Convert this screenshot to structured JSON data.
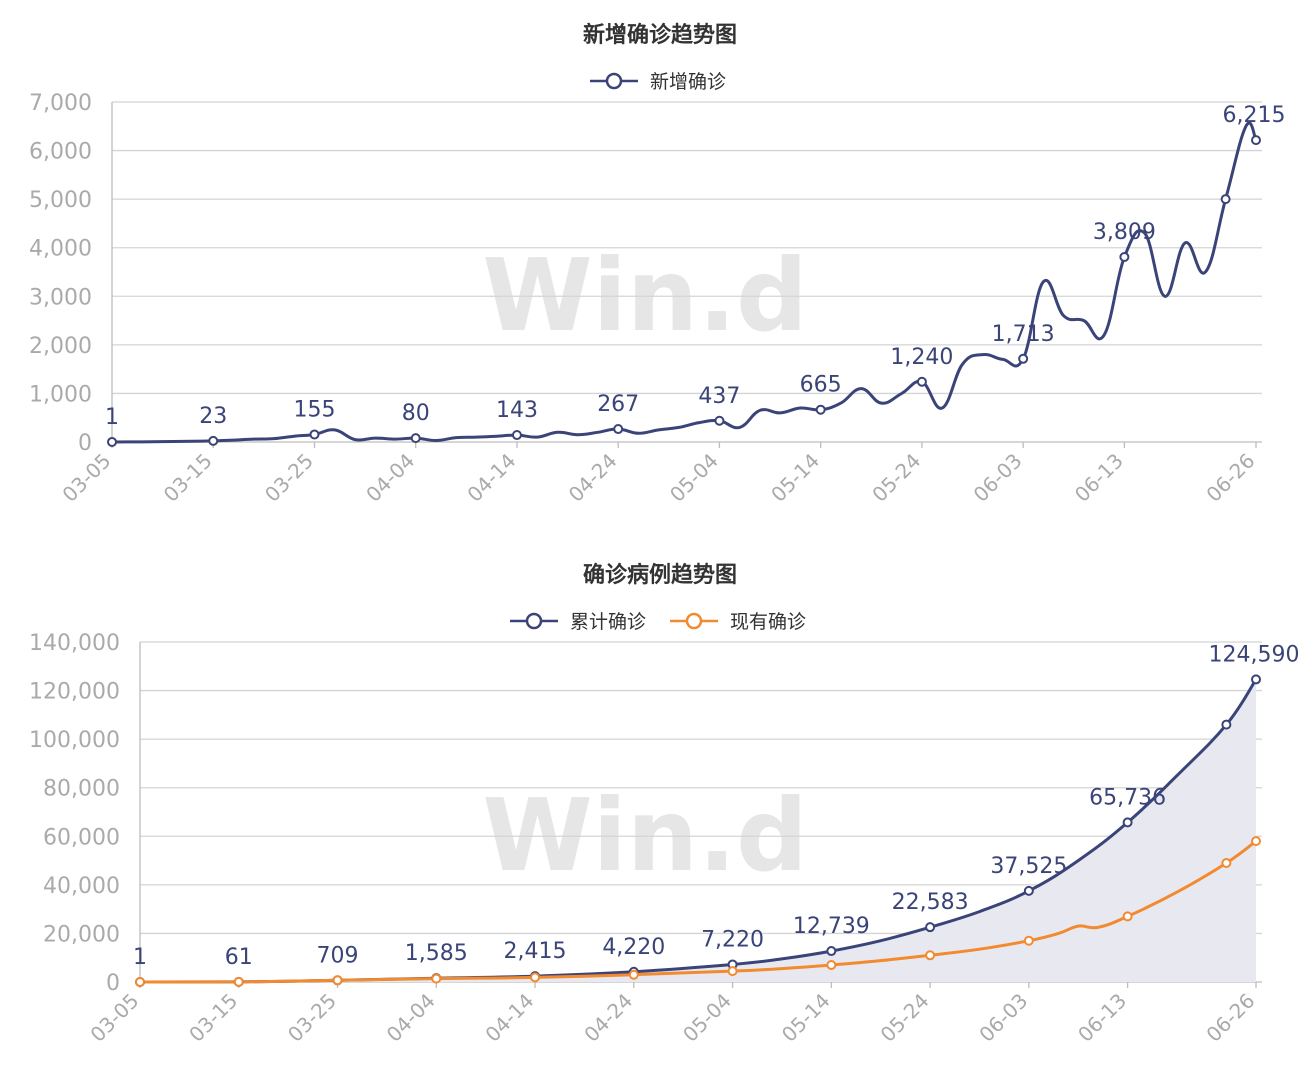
{
  "watermark": "Win.d",
  "colors": {
    "navy": "#3a4478",
    "orange": "#f28a30",
    "axis_text": "#aaaaaa",
    "grid": "#d4d4d4",
    "area": "#e8e9f0",
    "title": "#333333"
  },
  "chart_data": [
    {
      "type": "line",
      "title": "新增确诊趋势图",
      "legend": "top-center",
      "grid": true,
      "ylim": [
        0,
        7000
      ],
      "yticks": [
        0,
        1000,
        2000,
        3000,
        4000,
        5000,
        6000,
        7000
      ],
      "ytick_labels": [
        "0",
        "1,000",
        "2,000",
        "3,000",
        "4,000",
        "5,000",
        "6,000",
        "7,000"
      ],
      "xticks": [
        "03-05",
        "03-15",
        "03-25",
        "04-04",
        "04-14",
        "04-24",
        "05-04",
        "05-14",
        "05-24",
        "06-03",
        "06-13",
        "06-26"
      ],
      "series": [
        {
          "name": "新增确诊",
          "color": "#3a4478",
          "x": [
            "03-05",
            "03-07",
            "03-09",
            "03-11",
            "03-13",
            "03-15",
            "03-17",
            "03-19",
            "03-21",
            "03-23",
            "03-25",
            "03-27",
            "03-29",
            "03-31",
            "04-02",
            "04-04",
            "04-06",
            "04-08",
            "04-10",
            "04-12",
            "04-14",
            "04-16",
            "04-18",
            "04-20",
            "04-22",
            "04-24",
            "04-26",
            "04-28",
            "04-30",
            "05-02",
            "05-04",
            "05-06",
            "05-08",
            "05-10",
            "05-12",
            "05-14",
            "05-16",
            "05-18",
            "05-20",
            "05-22",
            "05-24",
            "05-26",
            "05-28",
            "05-30",
            "06-01",
            "06-03",
            "06-05",
            "06-07",
            "06-09",
            "06-11",
            "06-13",
            "06-15",
            "06-17",
            "06-19",
            "06-21",
            "06-23",
            "06-25",
            "06-26"
          ],
          "values": [
            1,
            2,
            5,
            10,
            15,
            23,
            40,
            60,
            70,
            120,
            155,
            250,
            50,
            80,
            60,
            80,
            30,
            90,
            100,
            120,
            143,
            100,
            200,
            150,
            200,
            267,
            180,
            250,
            300,
            400,
            437,
            300,
            650,
            600,
            700,
            665,
            800,
            1100,
            800,
            1000,
            1240,
            700,
            1600,
            1800,
            1700,
            1713,
            3300,
            2600,
            2500,
            2200,
            3809,
            4300,
            3000,
            4100,
            3500,
            5000,
            6500,
            6215
          ],
          "labels": [
            {
              "x": "03-05",
              "text": "1"
            },
            {
              "x": "03-15",
              "text": "23"
            },
            {
              "x": "03-25",
              "text": "155"
            },
            {
              "x": "04-04",
              "text": "80"
            },
            {
              "x": "04-14",
              "text": "143"
            },
            {
              "x": "04-24",
              "text": "267"
            },
            {
              "x": "05-04",
              "text": "437"
            },
            {
              "x": "05-14",
              "text": "665"
            },
            {
              "x": "05-24",
              "text": "1,240"
            },
            {
              "x": "06-03",
              "text": "1,713"
            },
            {
              "x": "06-13",
              "text": "3,809"
            },
            {
              "x": "06-26",
              "text": "6,215"
            }
          ]
        }
      ]
    },
    {
      "type": "line",
      "title": "确诊病例趋势图",
      "legend": "top-center",
      "grid": true,
      "ylim": [
        0,
        140000
      ],
      "yticks": [
        0,
        20000,
        40000,
        60000,
        80000,
        100000,
        120000,
        140000
      ],
      "ytick_labels": [
        "0",
        "20,000",
        "40,000",
        "60,000",
        "80,000",
        "100,000",
        "120,000",
        "140,000"
      ],
      "xticks": [
        "03-05",
        "03-15",
        "03-25",
        "04-04",
        "04-14",
        "04-24",
        "05-04",
        "05-14",
        "05-24",
        "06-03",
        "06-13",
        "06-26"
      ],
      "series": [
        {
          "name": "累计确诊",
          "color": "#3a4478",
          "area": true,
          "x": [
            "03-05",
            "03-15",
            "03-25",
            "04-04",
            "04-14",
            "04-24",
            "05-04",
            "05-09",
            "05-14",
            "05-19",
            "05-24",
            "05-29",
            "06-03",
            "06-08",
            "06-13",
            "06-18",
            "06-23",
            "06-26"
          ],
          "values": [
            1,
            61,
            709,
            1585,
            2415,
            4220,
            7220,
            9500,
            12739,
            17000,
            22583,
            29000,
            37525,
            50000,
            65736,
            85000,
            106000,
            124590
          ],
          "labels": [
            {
              "x": "03-05",
              "text": "1"
            },
            {
              "x": "03-15",
              "text": "61"
            },
            {
              "x": "03-25",
              "text": "709"
            },
            {
              "x": "04-04",
              "text": "1,585"
            },
            {
              "x": "04-14",
              "text": "2,415"
            },
            {
              "x": "04-24",
              "text": "4,220"
            },
            {
              "x": "05-04",
              "text": "7,220"
            },
            {
              "x": "05-14",
              "text": "12,739"
            },
            {
              "x": "05-24",
              "text": "22,583"
            },
            {
              "x": "06-03",
              "text": "37,525"
            },
            {
              "x": "06-13",
              "text": "65,736"
            },
            {
              "x": "06-26",
              "text": "124,590"
            }
          ]
        },
        {
          "name": "现有确诊",
          "color": "#f28a30",
          "area": false,
          "x": [
            "03-05",
            "03-15",
            "03-25",
            "04-04",
            "04-14",
            "04-24",
            "05-04",
            "05-09",
            "05-14",
            "05-19",
            "05-24",
            "05-29",
            "06-03",
            "06-06",
            "06-08",
            "06-10",
            "06-13",
            "06-18",
            "06-23",
            "06-26"
          ],
          "values": [
            1,
            60,
            700,
            1400,
            1900,
            3000,
            4500,
            5500,
            7000,
            8800,
            11000,
            13500,
            17000,
            20000,
            23000,
            22500,
            27000,
            37000,
            49000,
            58000
          ],
          "labels": []
        }
      ]
    }
  ]
}
